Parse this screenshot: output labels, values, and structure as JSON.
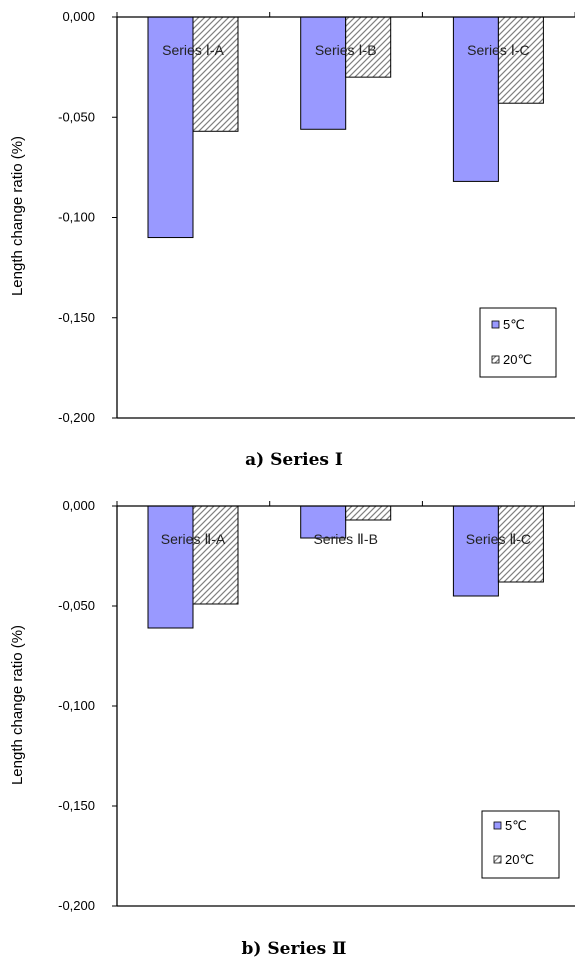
{
  "colors": {
    "series_5C": "#9999ff",
    "series_5C_stroke": "#000000",
    "hatch_fill": "#ffffff",
    "hatch_line": "#808080",
    "axis": "#000000"
  },
  "chart_data": [
    {
      "type": "bar",
      "caption": "a) Series Ⅰ",
      "categories": [
        "Series Ⅰ-A",
        "Series Ⅰ-B",
        "Series Ⅰ-C"
      ],
      "series": [
        {
          "name": "5℃",
          "pattern": "solid",
          "values": [
            -0.11,
            -0.056,
            -0.082
          ]
        },
        {
          "name": "20℃",
          "pattern": "hatched",
          "values": [
            -0.057,
            -0.03,
            -0.043
          ]
        }
      ],
      "ylabel": "Length change ratio (%)",
      "ylim": [
        -0.2,
        0.0
      ],
      "yticks": [
        "0,000",
        "-0,050",
        "-0,100",
        "-0,150",
        "-0,200"
      ],
      "grid": false,
      "legend_position": "bottom-right"
    },
    {
      "type": "bar",
      "caption": "b) Series Ⅱ",
      "categories": [
        "Series Ⅱ-A",
        "Series Ⅱ-B",
        "Series Ⅱ-C"
      ],
      "series": [
        {
          "name": "5℃",
          "pattern": "solid",
          "values": [
            -0.061,
            -0.016,
            -0.045
          ]
        },
        {
          "name": "20℃",
          "pattern": "hatched",
          "values": [
            -0.049,
            -0.007,
            -0.038
          ]
        }
      ],
      "ylabel": "Length change ratio (%)",
      "ylim": [
        -0.2,
        0.0
      ],
      "yticks": [
        "0,000",
        "-0,050",
        "-0,100",
        "-0,150",
        "-0,200"
      ],
      "grid": false,
      "legend_position": "bottom-right"
    }
  ]
}
